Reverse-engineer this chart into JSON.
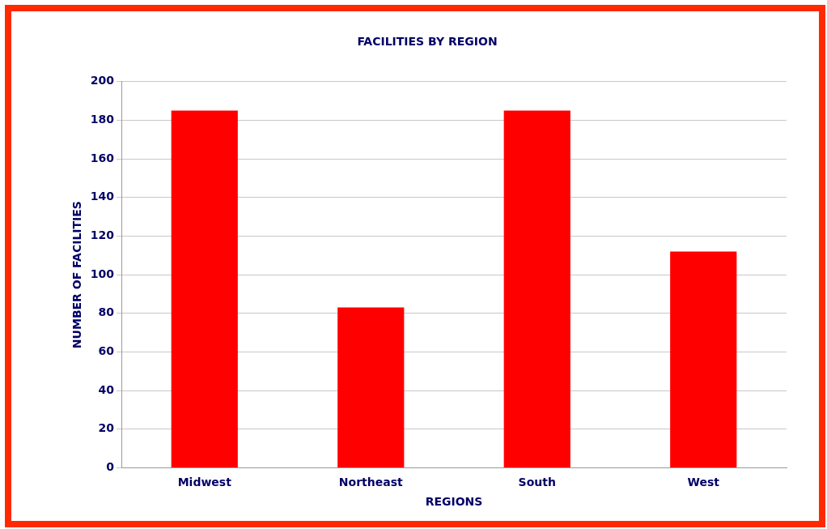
{
  "chart_data": {
    "type": "bar",
    "title": "FACILITIES BY REGION",
    "xlabel": "REGIONS",
    "ylabel": "NUMBER OF FACILITIES",
    "categories": [
      "Midwest",
      "Northeast",
      "South",
      "West"
    ],
    "values": [
      185,
      83,
      185,
      112
    ],
    "color": "#ff0000",
    "ylim": [
      0,
      200
    ],
    "yticks": [
      0,
      20,
      40,
      60,
      80,
      100,
      120,
      140,
      160,
      180,
      200
    ],
    "grid": "y",
    "legend": false
  }
}
